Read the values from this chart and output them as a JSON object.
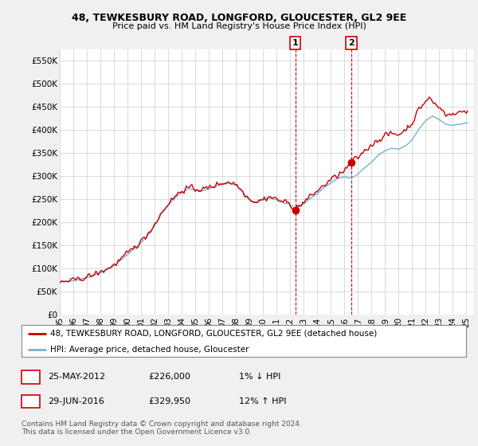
{
  "title1": "48, TEWKESBURY ROAD, LONGFORD, GLOUCESTER, GL2 9EE",
  "title2": "Price paid vs. HM Land Registry's House Price Index (HPI)",
  "legend_line1": "48, TEWKESBURY ROAD, LONGFORD, GLOUCESTER, GL2 9EE (detached house)",
  "legend_line2": "HPI: Average price, detached house, Gloucester",
  "annotation1_date": "25-MAY-2012",
  "annotation1_price": "£226,000",
  "annotation1_pct": "1% ↓ HPI",
  "annotation1_year": 2012.38,
  "annotation1_value": 226000,
  "annotation2_date": "29-JUN-2016",
  "annotation2_price": "£329,950",
  "annotation2_pct": "12% ↑ HPI",
  "annotation2_year": 2016.5,
  "annotation2_value": 329950,
  "ylim": [
    0,
    575000
  ],
  "xlim_start": 1995.0,
  "xlim_end": 2025.5,
  "yticks": [
    0,
    50000,
    100000,
    150000,
    200000,
    250000,
    300000,
    350000,
    400000,
    450000,
    500000,
    550000
  ],
  "ytick_labels": [
    "£0",
    "£50K",
    "£100K",
    "£150K",
    "£200K",
    "£250K",
    "£300K",
    "£350K",
    "£400K",
    "£450K",
    "£500K",
    "£550K"
  ],
  "xticks": [
    1995,
    1996,
    1997,
    1998,
    1999,
    2000,
    2001,
    2002,
    2003,
    2004,
    2005,
    2006,
    2007,
    2008,
    2009,
    2010,
    2011,
    2012,
    2013,
    2014,
    2015,
    2016,
    2017,
    2018,
    2019,
    2020,
    2021,
    2022,
    2023,
    2024,
    2025
  ],
  "line_color_red": "#cc0000",
  "line_color_blue": "#7ab0d4",
  "fill_color_blue": "#ddeeff",
  "annotation_box_color": "#cc0000",
  "dashed_line_color": "#cc0000",
  "background_color": "#f0f0f0",
  "plot_bg_color": "#ffffff",
  "footer_text": "Contains HM Land Registry data © Crown copyright and database right 2024.\nThis data is licensed under the Open Government Licence v3.0."
}
